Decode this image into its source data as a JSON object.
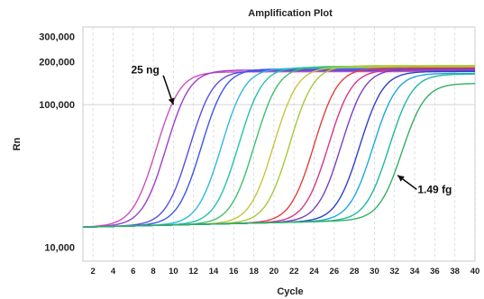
{
  "chart_data": {
    "type": "line",
    "title": "Amplification Plot",
    "xlabel": "Cycle",
    "ylabel": "Rn",
    "y_scale": "log",
    "xlim": [
      1,
      40
    ],
    "ylim": [
      8000,
      350000
    ],
    "x_ticks": [
      2,
      4,
      6,
      8,
      10,
      12,
      14,
      16,
      18,
      20,
      22,
      24,
      26,
      28,
      30,
      32,
      34,
      36,
      38,
      40
    ],
    "y_ticks": [
      {
        "value": 10000,
        "label": "10,000"
      },
      {
        "value": 100000,
        "label": "100,000"
      },
      {
        "value": 200000,
        "label": "200,000"
      },
      {
        "value": 300000,
        "label": "300,000"
      }
    ],
    "grid": "vertical dashed lines at each cycle tick, horizontal line at 100,000",
    "curve_model": {
      "baseline": 13800,
      "baseline_slope": 55,
      "steepness": 0.95
    },
    "series": [
      {
        "color": "#d050b8",
        "midpoint": 9.6,
        "plateau": 155000
      },
      {
        "color": "#9a3ed0",
        "midpoint": 10.6,
        "plateau": 160000
      },
      {
        "color": "#5a4ee0",
        "midpoint": 12.9,
        "plateau": 158000
      },
      {
        "color": "#3858e8",
        "midpoint": 14.1,
        "plateau": 163000
      },
      {
        "color": "#30b8e0",
        "midpoint": 16.1,
        "plateau": 165000
      },
      {
        "color": "#22c4a8",
        "midpoint": 17.8,
        "plateau": 168000
      },
      {
        "color": "#3ec06a",
        "midpoint": 19.4,
        "plateau": 170000
      },
      {
        "color": "#c8c440",
        "midpoint": 21.3,
        "plateau": 168000
      },
      {
        "color": "#a4c83c",
        "midpoint": 22.9,
        "plateau": 172000
      },
      {
        "color": "#e04040",
        "midpoint": 25.3,
        "plateau": 165000
      },
      {
        "color": "#d43888",
        "midpoint": 26.7,
        "plateau": 160000
      },
      {
        "color": "#7840c8",
        "midpoint": 28.0,
        "plateau": 162000
      },
      {
        "color": "#3040c8",
        "midpoint": 29.8,
        "plateau": 155000
      },
      {
        "color": "#1ea8e0",
        "midpoint": 31.1,
        "plateau": 150000
      },
      {
        "color": "#20b8a0",
        "midpoint": 32.7,
        "plateau": 148000
      },
      {
        "color": "#34b060",
        "midpoint": 33.9,
        "plateau": 125000
      }
    ],
    "annotations": [
      {
        "label": "25 ng",
        "arrow_to": {
          "x": 10.0,
          "y": 100000
        },
        "text_at": {
          "x": 7.2,
          "y": 165000
        }
      },
      {
        "label": "1.49 fg",
        "arrow_to": {
          "x": 32.3,
          "y": 32000
        },
        "text_at": {
          "x": 36.0,
          "y": 24000
        }
      }
    ]
  }
}
